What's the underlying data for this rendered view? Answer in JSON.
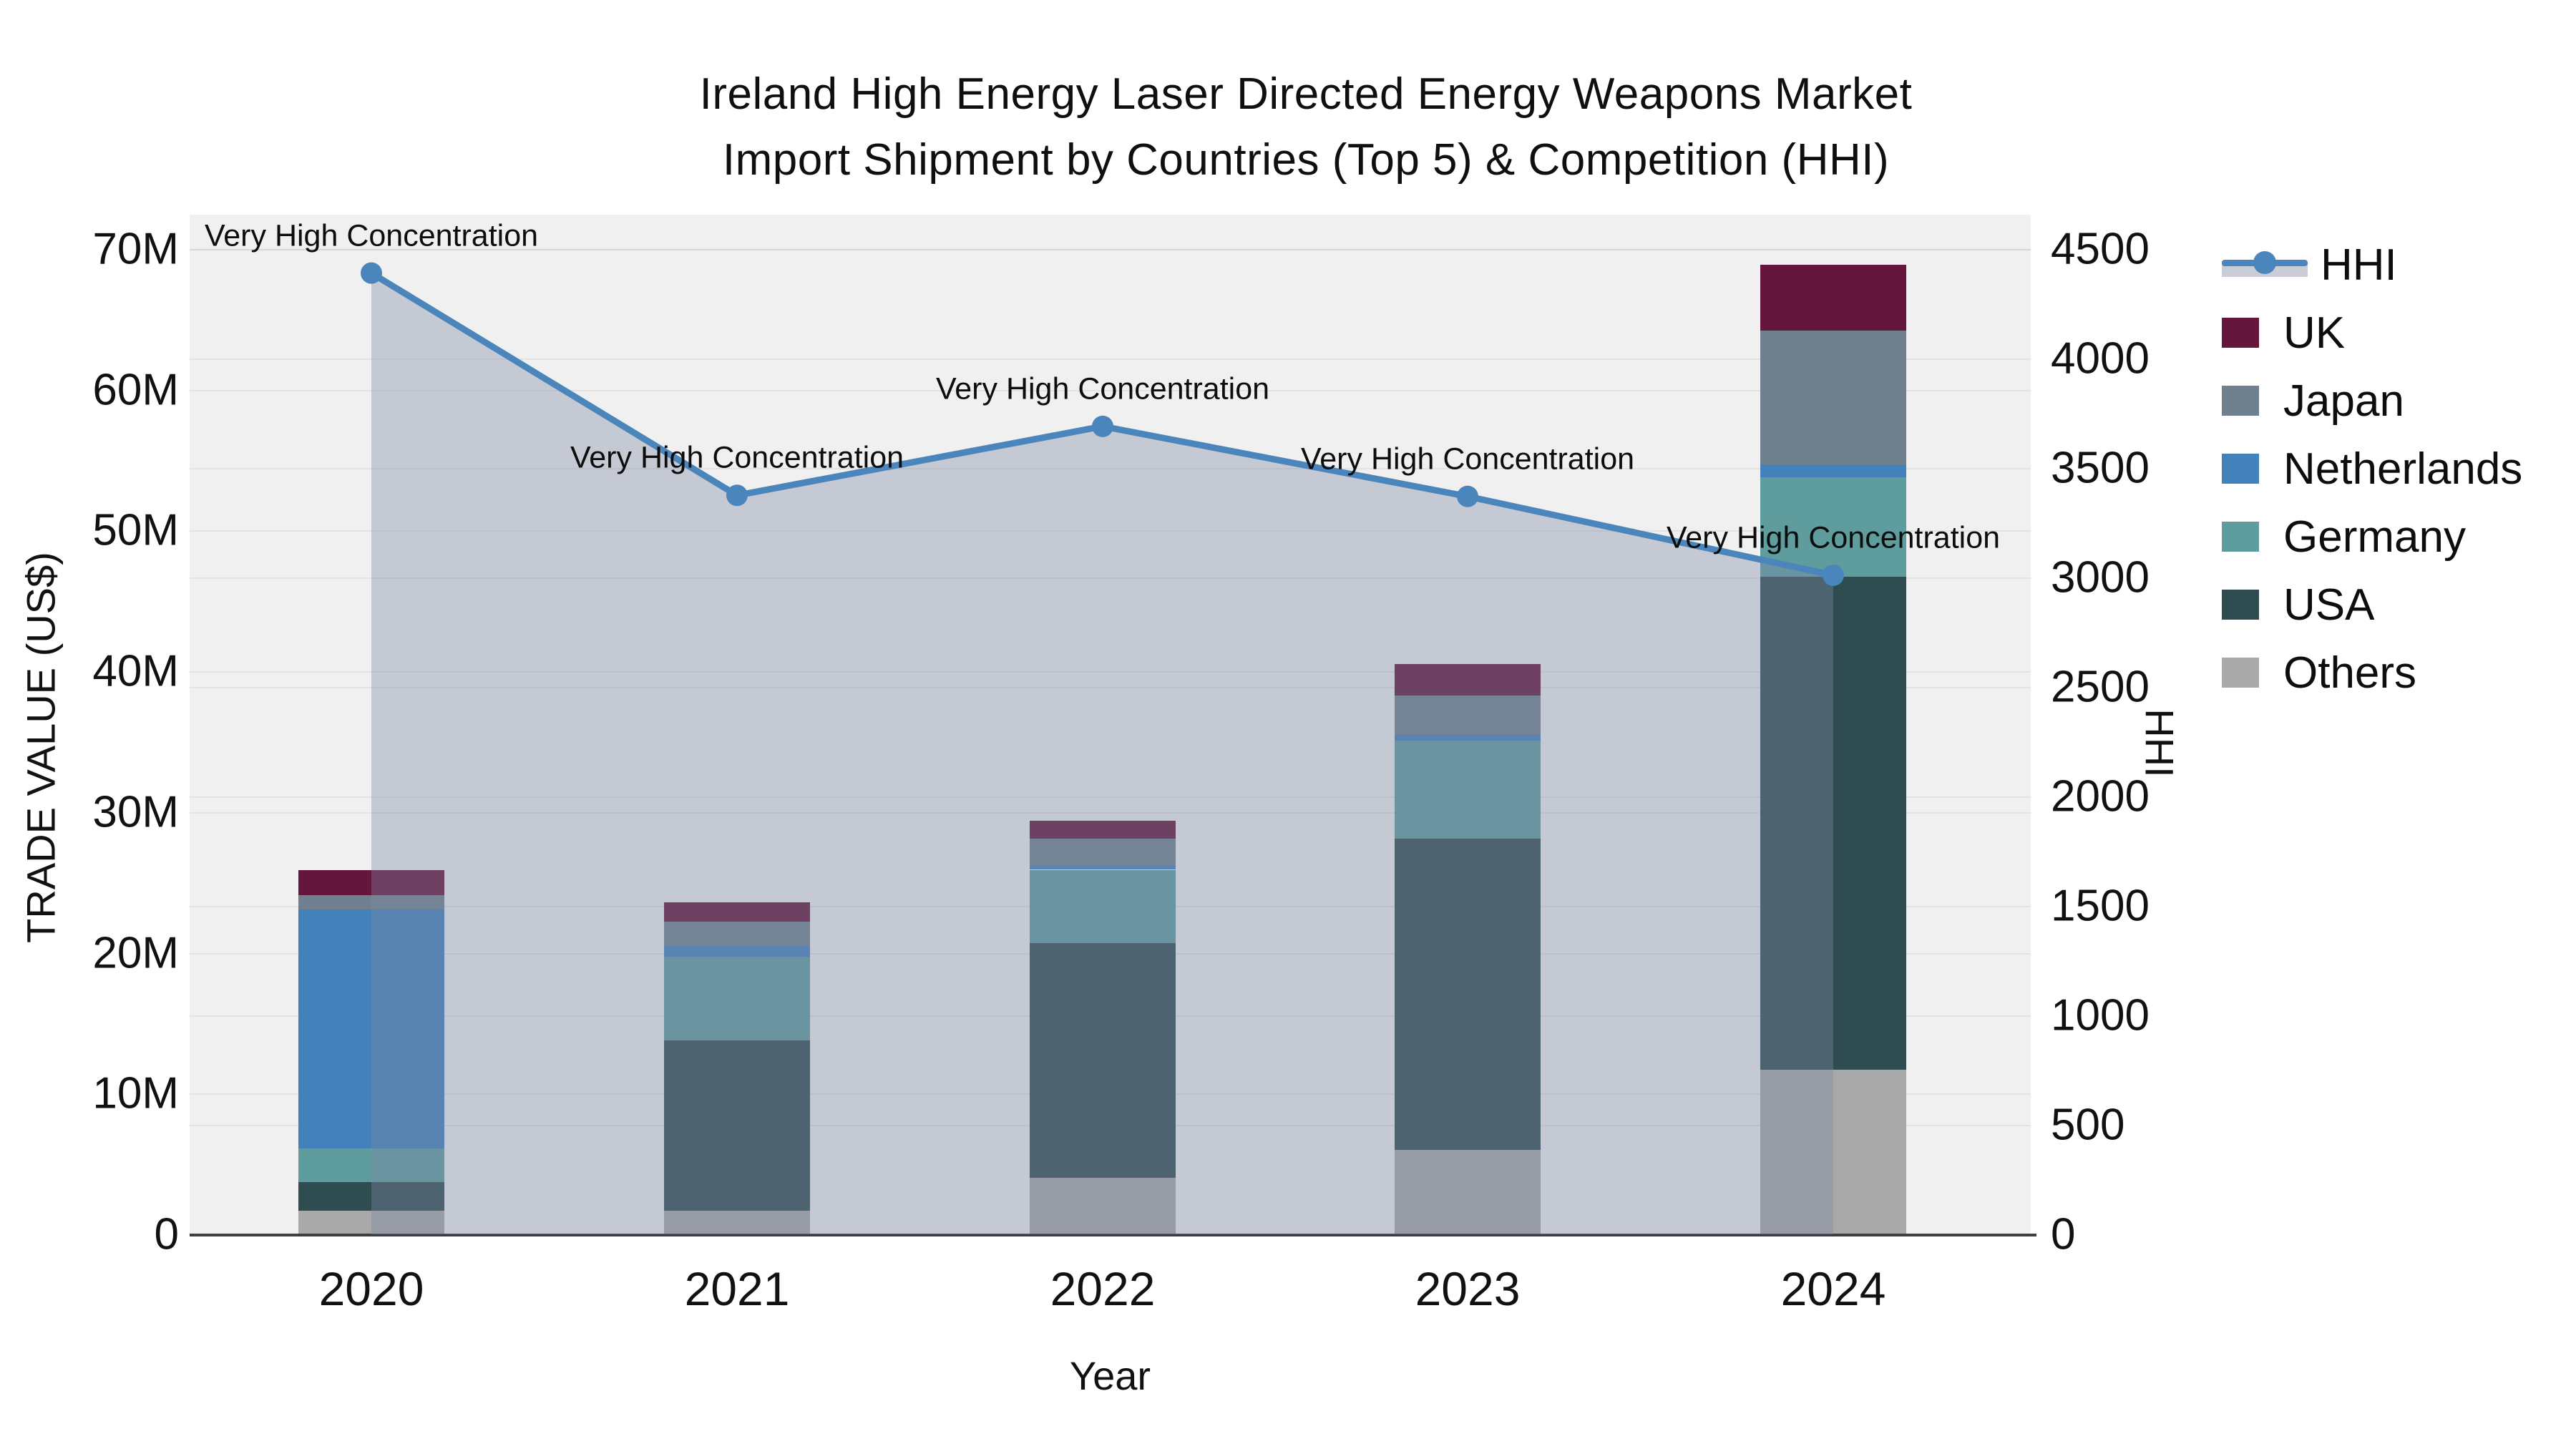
{
  "title": {
    "line1": "Ireland High Energy Laser Directed Energy Weapons Market",
    "line2": "Import Shipment by Countries (Top 5) & Competition (HHI)"
  },
  "axes": {
    "y_left": {
      "title": "TRADE VALUE (US$)",
      "tick_labels": [
        "0",
        "10M",
        "20M",
        "30M",
        "40M",
        "50M",
        "60M",
        "70M"
      ],
      "tick_values": [
        0,
        10,
        20,
        30,
        40,
        50,
        60,
        70
      ],
      "max": 70
    },
    "y_right": {
      "title": "HHI",
      "tick_labels": [
        "0",
        "500",
        "1000",
        "1500",
        "2000",
        "2500",
        "3000",
        "3500",
        "4000",
        "4500"
      ],
      "tick_values": [
        0,
        500,
        1000,
        1500,
        2000,
        2500,
        3000,
        3500,
        4000,
        4500
      ],
      "max": 4500
    },
    "x": {
      "title": "Year",
      "categories": [
        "2020",
        "2021",
        "2022",
        "2023",
        "2024"
      ]
    }
  },
  "chart_data": {
    "type": "bar",
    "subtype": "stacked-bar-with-line",
    "title": "Ireland High Energy Laser Directed Energy Weapons Market Import Shipment by Countries (Top 5) & Competition (HHI)",
    "xlabel": "Year",
    "ylabel_left": "TRADE VALUE (US$)",
    "ylabel_right": "HHI",
    "unit": "millions US$",
    "ylim_left": [
      0,
      70
    ],
    "ylim_right": [
      0,
      4500
    ],
    "grid": true,
    "legend_position": "right",
    "categories": [
      "2020",
      "2021",
      "2022",
      "2023",
      "2024"
    ],
    "series": [
      {
        "name": "Others",
        "color": "#a9a9a9",
        "values": [
          1.7,
          1.7,
          4.0,
          6.0,
          11.7
        ]
      },
      {
        "name": "USA",
        "color": "#2f4d50",
        "values": [
          2.0,
          12.1,
          16.7,
          22.1,
          35.0
        ]
      },
      {
        "name": "Germany",
        "color": "#5e9c9e",
        "values": [
          2.4,
          5.9,
          5.2,
          7.0,
          7.1
        ]
      },
      {
        "name": "Netherlands",
        "color": "#4381bb",
        "values": [
          17.0,
          0.8,
          0.3,
          0.4,
          0.9
        ]
      },
      {
        "name": "Japan",
        "color": "#70808f",
        "values": [
          1.0,
          1.7,
          1.9,
          2.8,
          9.5
        ]
      },
      {
        "name": "UK",
        "color": "#65163c",
        "values": [
          1.8,
          1.4,
          1.3,
          2.2,
          4.7
        ]
      }
    ],
    "line_series": {
      "name": "HHI",
      "axis": "right",
      "color": "#4a85bc",
      "fill_color": "rgba(125,136,162,0.38)",
      "values": [
        4390,
        3375,
        3690,
        3370,
        3010
      ]
    },
    "annotations": [
      {
        "x": "2020",
        "text": "Very High Concentration"
      },
      {
        "x": "2021",
        "text": "Very High Concentration"
      },
      {
        "x": "2022",
        "text": "Very High Concentration"
      },
      {
        "x": "2023",
        "text": "Very High Concentration"
      },
      {
        "x": "2024",
        "text": "Very High Concentration"
      }
    ]
  },
  "legend": {
    "items": [
      {
        "label": "HHI",
        "color": "#4a85bc",
        "kind": "line"
      },
      {
        "label": "UK",
        "color": "#65163c",
        "kind": "box"
      },
      {
        "label": "Japan",
        "color": "#70808f",
        "kind": "box"
      },
      {
        "label": "Netherlands",
        "color": "#4381bb",
        "kind": "box"
      },
      {
        "label": "Germany",
        "color": "#5e9c9e",
        "kind": "box"
      },
      {
        "label": "USA",
        "color": "#2f4d50",
        "kind": "box"
      },
      {
        "label": "Others",
        "color": "#a9a9a9",
        "kind": "box"
      }
    ],
    "band_color": "#c9cdd6"
  }
}
